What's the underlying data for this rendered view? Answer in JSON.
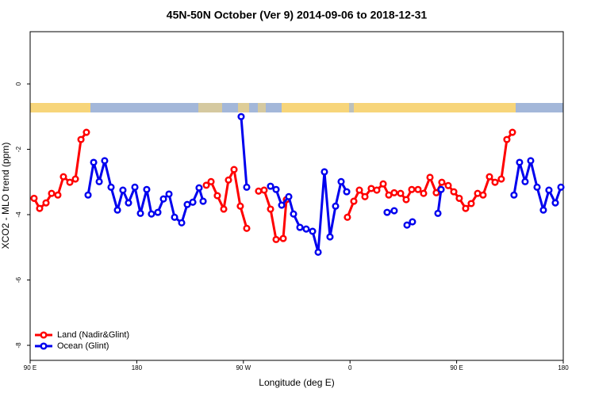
{
  "chart_data": {
    "type": "line",
    "title": "45N-50N October (Ver 9)   2014-09-06 to 2018-12-31",
    "xlabel": "Longitude (deg E)",
    "ylabel": "XCO2 - MLO trend (ppm)",
    "xlim": [
      90,
      540
    ],
    "xticks": [
      {
        "value": 90,
        "label": "90 E"
      },
      {
        "value": 180,
        "label": "180"
      },
      {
        "value": 270,
        "label": "90 W"
      },
      {
        "value": 360,
        "label": "0"
      },
      {
        "value": 450,
        "label": "90 E"
      },
      {
        "value": 540,
        "label": "180"
      }
    ],
    "ylim": [
      -8.46,
      1.6
    ],
    "yticks": [
      0,
      -2,
      -4,
      -6,
      -8
    ],
    "legend": "lower left",
    "series": [
      {
        "name": "Land (Nadir&Glint)",
        "color": "#ff0000",
        "x": [
          93.3,
          98.0,
          103.4,
          108.1,
          113.4,
          118.1,
          123.5,
          128.2,
          132.9,
          137.5,
          190,
          238.7,
          242.7,
          248.0,
          253.4,
          257.4,
          262.1,
          267.4,
          272.8,
          278,
          282.8,
          287.5,
          292.9,
          297.6,
          303.6,
          306.3,
          330,
          357.8,
          363.2,
          367.9,
          372.6,
          377.9,
          382.6,
          388.0,
          392.7,
          397.3,
          402.7,
          407.4,
          412.1,
          417.4,
          422.1,
          427.5,
          432.8,
          437.5,
          442.9,
          447.6,
          452.2,
          457.6,
          462.3,
          467.7,
          472.3,
          477.7,
          482.4,
          487.7,
          492.4,
          497.1
        ],
        "values": [
          -3.5,
          -3.81,
          -3.64,
          -3.35,
          -3.4,
          -2.84,
          -3.01,
          -2.91,
          -1.7,
          -1.48,
          null,
          -3.1,
          -2.99,
          -3.42,
          -3.83,
          -2.94,
          -2.62,
          -3.74,
          -4.42,
          null,
          -3.28,
          -3.25,
          -3.83,
          -4.76,
          -4.73,
          -3.54,
          null,
          -4.08,
          -3.59,
          -3.25,
          -3.45,
          -3.2,
          -3.25,
          -3.06,
          -3.4,
          -3.33,
          -3.35,
          -3.54,
          -3.23,
          -3.23,
          -3.35,
          -2.86,
          -3.33,
          -3.01,
          -3.11,
          -3.3,
          -3.5,
          -3.81,
          -3.66,
          -3.35,
          -3.4,
          -2.84,
          -3.01,
          -2.91,
          -1.7,
          -1.48
        ]
      },
      {
        "name": "Ocean (Glint)",
        "color": "#0000ee",
        "x": [
          138.9,
          143.6,
          148.3,
          152.9,
          158.3,
          163.7,
          168.3,
          173.0,
          178.4,
          183.1,
          188.4,
          192.4,
          197.8,
          202.5,
          207.2,
          211.9,
          217.9,
          222.6,
          227.3,
          232.6,
          236.0,
          252,
          268.1,
          272.8,
          283,
          292.9,
          297.6,
          302.3,
          308.3,
          312.3,
          317.7,
          323.0,
          328.4,
          333.1,
          338.4,
          343.1,
          347.8,
          352.5,
          357.2,
          374,
          391.3,
          397.3,
          403,
          408.1,
          412.7,
          423,
          434.2,
          436.9,
          468,
          498.4,
          503.1,
          507.8,
          512.5,
          517.9,
          523.2,
          527.9,
          533.3,
          538.0
        ],
        "values": [
          -3.4,
          -2.4,
          -2.99,
          -2.35,
          -3.16,
          -3.86,
          -3.25,
          -3.64,
          -3.16,
          -3.96,
          -3.23,
          -3.98,
          -3.93,
          -3.52,
          -3.37,
          -4.08,
          -4.25,
          -3.69,
          -3.62,
          -3.18,
          -3.59,
          null,
          -1.0,
          -3.16,
          null,
          -3.13,
          -3.23,
          -3.71,
          -3.45,
          -3.98,
          -4.39,
          -4.44,
          -4.51,
          -5.15,
          -2.69,
          -4.68,
          -3.74,
          -2.99,
          -3.3,
          null,
          -3.93,
          -3.88,
          null,
          -4.32,
          -4.22,
          null,
          -3.96,
          -3.23,
          null,
          -3.4,
          -2.4,
          -2.99,
          -2.35,
          -3.16,
          -3.86,
          -3.25,
          -3.64,
          -3.16
        ]
      }
    ]
  }
}
